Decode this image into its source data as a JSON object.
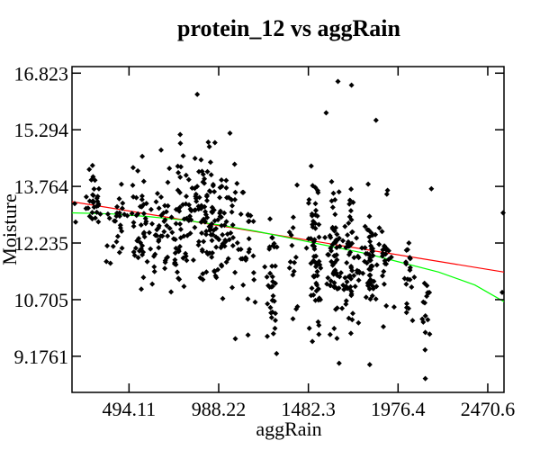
{
  "chart_data": {
    "type": "scatter",
    "title": "protein_12 vs aggRain",
    "xlabel": "aggRain",
    "ylabel": "Moisture",
    "xlim": [
      180,
      2560
    ],
    "ylim": [
      8.2,
      17.0
    ],
    "x_ticks": [
      494.11,
      988.22,
      1482.3,
      1976.4,
      2470.6
    ],
    "x_tick_labels": [
      "494.11",
      "988.22",
      "1482.3",
      "1976.4",
      "2470.6"
    ],
    "y_ticks": [
      16.823,
      15.294,
      13.764,
      12.235,
      10.705,
      9.1761
    ],
    "y_tick_labels": [
      "16.823",
      "15.294",
      "13.764",
      "12.235",
      "10.705",
      "9.1761"
    ],
    "grid": false,
    "legend": false,
    "points_color": "#000000",
    "fit_lines": [
      {
        "kind": "linear",
        "color": "#ff0000",
        "x": [
          180,
          2560
        ],
        "y": [
          13.35,
          11.45
        ]
      },
      {
        "kind": "smooth",
        "color": "#00ff00",
        "x": [
          180,
          400,
          600,
          800,
          1000,
          1200,
          1400,
          1600,
          1800,
          2000,
          2200,
          2400,
          2560
        ],
        "y": [
          13.05,
          13.02,
          12.95,
          12.85,
          12.72,
          12.55,
          12.35,
          12.15,
          11.95,
          11.7,
          11.45,
          11.1,
          10.65
        ]
      }
    ],
    "clusters": [
      {
        "cx": 300,
        "sx": 30,
        "cy": 13.3,
        "sy": 0.6,
        "n": 30
      },
      {
        "cx": 420,
        "sx": 50,
        "cy": 12.8,
        "sy": 0.8,
        "n": 25
      },
      {
        "cx": 560,
        "sx": 50,
        "cy": 12.8,
        "sy": 1.0,
        "n": 45
      },
      {
        "cx": 680,
        "sx": 50,
        "cy": 12.6,
        "sy": 1.1,
        "n": 45
      },
      {
        "cx": 780,
        "sx": 40,
        "cy": 12.8,
        "sy": 1.3,
        "n": 45
      },
      {
        "cx": 880,
        "sx": 45,
        "cy": 12.9,
        "sy": 1.2,
        "n": 55
      },
      {
        "cx": 960,
        "sx": 45,
        "cy": 12.9,
        "sy": 1.2,
        "n": 55
      },
      {
        "cx": 1060,
        "sx": 45,
        "cy": 12.7,
        "sy": 1.1,
        "n": 35
      },
      {
        "cx": 1150,
        "sx": 30,
        "cy": 12.4,
        "sy": 1.1,
        "n": 20
      },
      {
        "cx": 1280,
        "sx": 25,
        "cy": 11.4,
        "sy": 1.3,
        "n": 35
      },
      {
        "cx": 1400,
        "sx": 20,
        "cy": 11.8,
        "sy": 1.1,
        "n": 15
      },
      {
        "cx": 1520,
        "sx": 30,
        "cy": 12.0,
        "sy": 1.4,
        "n": 60
      },
      {
        "cx": 1620,
        "sx": 30,
        "cy": 11.9,
        "sy": 1.3,
        "n": 60
      },
      {
        "cx": 1720,
        "sx": 30,
        "cy": 11.7,
        "sy": 1.2,
        "n": 60
      },
      {
        "cx": 1820,
        "sx": 30,
        "cy": 11.6,
        "sy": 1.1,
        "n": 50
      },
      {
        "cx": 1910,
        "sx": 20,
        "cy": 11.6,
        "sy": 1.1,
        "n": 25
      },
      {
        "cx": 2030,
        "sx": 25,
        "cy": 11.2,
        "sy": 1.0,
        "n": 20
      },
      {
        "cx": 2130,
        "sx": 20,
        "cy": 10.5,
        "sy": 0.9,
        "n": 15
      }
    ],
    "extra_points": [
      {
        "x": 870,
        "y": 16.25
      },
      {
        "x": 1645,
        "y": 16.6
      },
      {
        "x": 1720,
        "y": 16.5
      },
      {
        "x": 1855,
        "y": 15.55
      },
      {
        "x": 1580,
        "y": 15.75
      },
      {
        "x": 1820,
        "y": 8.95
      },
      {
        "x": 2160,
        "y": 13.7
      },
      {
        "x": 2555,
        "y": 13.05
      },
      {
        "x": 2550,
        "y": 10.9
      },
      {
        "x": 195,
        "y": 13.3
      },
      {
        "x": 200,
        "y": 12.8
      },
      {
        "x": 1080,
        "y": 9.65
      },
      {
        "x": 1150,
        "y": 9.75
      },
      {
        "x": 2125,
        "y": 9.35
      },
      {
        "x": 1050,
        "y": 15.2
      }
    ]
  }
}
